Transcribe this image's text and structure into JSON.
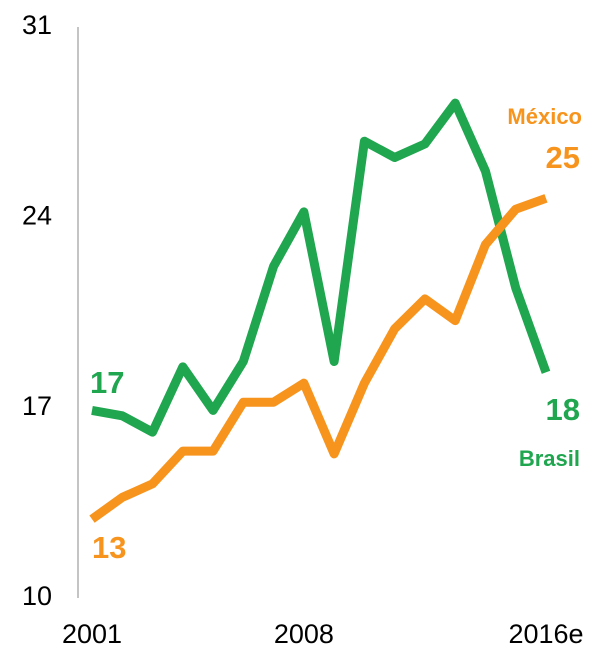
{
  "chart_data": {
    "type": "line",
    "categories": [
      "2001",
      null,
      null,
      null,
      null,
      null,
      null,
      "2008",
      null,
      null,
      null,
      null,
      null,
      null,
      null,
      "2016e"
    ],
    "series": [
      {
        "name": "Brasil",
        "color": "#1fa64f",
        "values": [
          16.9,
          16.7,
          16.1,
          18.5,
          16.9,
          18.7,
          22.2,
          24.2,
          18.7,
          26.8,
          26.2,
          26.7,
          28.2,
          25.7,
          21.4,
          18.3
        ],
        "value_labels": [
          "17",
          null,
          null,
          null,
          null,
          null,
          null,
          null,
          null,
          null,
          null,
          null,
          null,
          null,
          null,
          "18"
        ]
      },
      {
        "name": "México",
        "color": "#f7941d",
        "values": [
          12.9,
          13.7,
          14.2,
          15.4,
          15.4,
          17.2,
          17.2,
          17.9,
          15.3,
          17.9,
          19.9,
          21.0,
          20.2,
          23.0,
          24.3,
          24.7
        ],
        "value_labels": [
          "13",
          null,
          null,
          null,
          null,
          null,
          null,
          null,
          null,
          null,
          null,
          null,
          null,
          null,
          null,
          "25"
        ]
      }
    ],
    "ylim": [
      10,
      31
    ],
    "yticks": [
      10,
      17,
      24,
      31
    ],
    "grid": false
  }
}
